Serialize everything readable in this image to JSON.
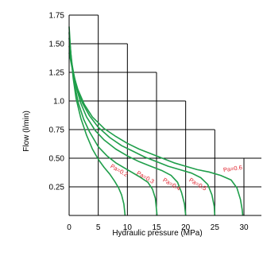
{
  "chart_data": {
    "type": "line",
    "xlabel": "Hydraulic pressure (MPa)",
    "ylabel": "Flow (l/min)",
    "xlim": [
      0,
      33
    ],
    "ylim": [
      0,
      1.75
    ],
    "x_ticks": [
      "0",
      "5",
      "10",
      "15",
      "20",
      "25",
      "30"
    ],
    "y_ticks": [
      "0.25",
      "0.50",
      "0.75",
      "1.0",
      "1.25",
      "1.50",
      "1.75"
    ],
    "grid": true,
    "curve_color": "#1f9e4a",
    "label_color": "#e0202a",
    "series": [
      {
        "name": "Pa=0.2",
        "label_at": [
          7,
          0.42
        ],
        "points": [
          [
            0,
            1.65
          ],
          [
            0.3,
            1.4
          ],
          [
            0.7,
            1.2
          ],
          [
            1.2,
            1.02
          ],
          [
            2,
            0.85
          ],
          [
            3,
            0.7
          ],
          [
            4,
            0.58
          ],
          [
            5,
            0.49
          ],
          [
            6,
            0.42
          ],
          [
            7,
            0.36
          ],
          [
            7.8,
            0.3
          ],
          [
            8.5,
            0.24
          ],
          [
            9,
            0.18
          ],
          [
            9.4,
            0.1
          ],
          [
            9.6,
            0
          ]
        ]
      },
      {
        "name": "Pa=0.3",
        "label_at": [
          11.5,
          0.36
        ],
        "points": [
          [
            0,
            1.6
          ],
          [
            0.4,
            1.35
          ],
          [
            0.9,
            1.15
          ],
          [
            1.6,
            0.98
          ],
          [
            2.5,
            0.84
          ],
          [
            3.5,
            0.73
          ],
          [
            5,
            0.6
          ],
          [
            6.5,
            0.52
          ],
          [
            8,
            0.46
          ],
          [
            10,
            0.4
          ],
          [
            12,
            0.34
          ],
          [
            13.5,
            0.29
          ],
          [
            14.3,
            0.23
          ],
          [
            14.8,
            0.15
          ],
          [
            15.1,
            0
          ]
        ]
      },
      {
        "name": "Pa=0.4",
        "label_at": [
          16,
          0.3
        ],
        "points": [
          [
            0,
            1.55
          ],
          [
            0.5,
            1.32
          ],
          [
            1.1,
            1.14
          ],
          [
            2,
            0.98
          ],
          [
            3,
            0.86
          ],
          [
            4.5,
            0.74
          ],
          [
            6,
            0.66
          ],
          [
            8,
            0.58
          ],
          [
            10,
            0.52
          ],
          [
            12,
            0.47
          ],
          [
            14,
            0.43
          ],
          [
            16,
            0.39
          ],
          [
            17.5,
            0.35
          ],
          [
            18.6,
            0.29
          ],
          [
            19.3,
            0.2
          ],
          [
            19.8,
            0.1
          ],
          [
            20,
            0
          ]
        ]
      },
      {
        "name": "Pa=0.5",
        "label_at": [
          20.5,
          0.3
        ],
        "points": [
          [
            0,
            1.48
          ],
          [
            0.6,
            1.28
          ],
          [
            1.3,
            1.12
          ],
          [
            2.3,
            0.98
          ],
          [
            3.5,
            0.87
          ],
          [
            5,
            0.77
          ],
          [
            7,
            0.68
          ],
          [
            9,
            0.61
          ],
          [
            11,
            0.56
          ],
          [
            13,
            0.51
          ],
          [
            15,
            0.47
          ],
          [
            17,
            0.43
          ],
          [
            19,
            0.4
          ],
          [
            21,
            0.37
          ],
          [
            22.6,
            0.33
          ],
          [
            23.8,
            0.27
          ],
          [
            24.5,
            0.18
          ],
          [
            24.9,
            0.08
          ],
          [
            25,
            0
          ]
        ]
      },
      {
        "name": "Pa=0.6",
        "label_at": [
          26.5,
          0.38
        ],
        "points": [
          [
            0,
            1.42
          ],
          [
            0.7,
            1.24
          ],
          [
            1.5,
            1.1
          ],
          [
            2.6,
            0.97
          ],
          [
            4,
            0.86
          ],
          [
            6,
            0.76
          ],
          [
            8,
            0.69
          ],
          [
            10,
            0.63
          ],
          [
            12,
            0.58
          ],
          [
            14,
            0.54
          ],
          [
            16,
            0.5
          ],
          [
            18,
            0.46
          ],
          [
            20,
            0.43
          ],
          [
            22,
            0.4
          ],
          [
            24,
            0.38
          ],
          [
            26,
            0.35
          ],
          [
            27.8,
            0.31
          ],
          [
            28.8,
            0.24
          ],
          [
            29.4,
            0.14
          ],
          [
            29.7,
            0.05
          ],
          [
            29.8,
            0
          ]
        ]
      }
    ]
  }
}
